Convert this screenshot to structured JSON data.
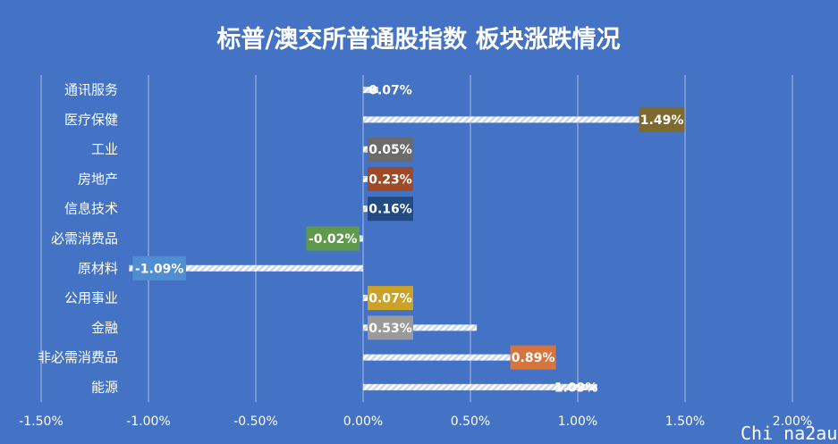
{
  "chart_data": {
    "type": "bar",
    "orientation": "horizontal",
    "title": "标普/澳交所普通股指数 板块涨跌情况",
    "categories": [
      "通讯服务",
      "医疗保健",
      "工业",
      "房地产",
      "信息技术",
      "必需消费品",
      "原材料",
      "公用事业",
      "金融",
      "非必需消费品",
      "能源"
    ],
    "values": [
      0.07,
      1.49,
      0.05,
      0.23,
      0.16,
      -0.02,
      -1.09,
      0.07,
      0.53,
      0.89,
      1.09
    ],
    "data_labels": [
      "0.07%",
      "1.49%",
      "0.05%",
      "0.23%",
      "0.16%",
      "-0.02%",
      "-1.09%",
      "0.07%",
      "0.53%",
      "0.89%",
      "1.09%"
    ],
    "label_colors": [
      "",
      "#7f6a2d",
      "#6b6b6b",
      "#9e4a28",
      "#244a84",
      "#5f9a4a",
      "#4f8fd1",
      "#c9a227",
      "#9a9a9a",
      "#d8743c",
      ""
    ],
    "xlim": [
      -1.5,
      2.0
    ],
    "ticks": [
      -1.5,
      -1.0,
      -0.5,
      0.0,
      0.5,
      1.0,
      1.5,
      2.0
    ],
    "tick_labels": [
      "-1.50%",
      "-1.00%",
      "-0.50%",
      "0.00%",
      "0.50%",
      "1.00%",
      "1.50%",
      "2.00%"
    ],
    "grid": true,
    "bar_pattern": "diagonal-stripes",
    "colors": {
      "background": "#4472c4",
      "bar_stripe": "#ffffff",
      "gridline": "#ffffff",
      "text": "#ffffff"
    }
  },
  "watermark": "Chi na2au"
}
